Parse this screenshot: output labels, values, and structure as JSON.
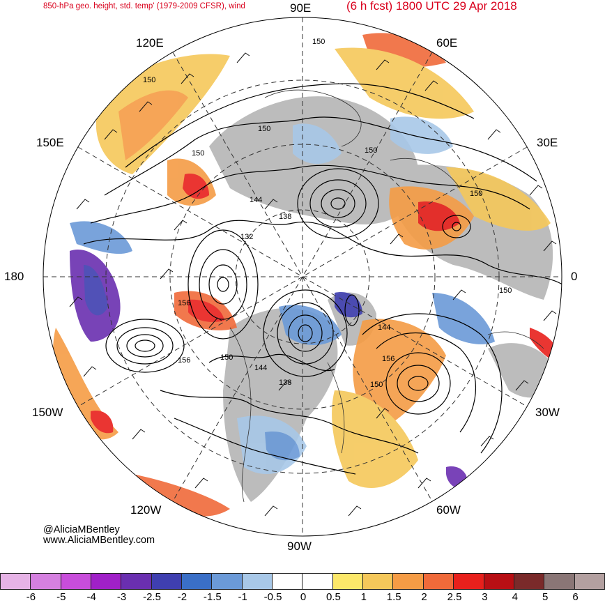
{
  "header": {
    "left_title": "850-hPa geo. height, std. temp' (1979-2009 CFSR), wind",
    "right_title": "(6 h fcst) 1800 UTC 29 Apr 2018"
  },
  "longitude_labels": {
    "lon_90e": "90E",
    "lon_120e": "120E",
    "lon_60e": "60E",
    "lon_150e": "150E",
    "lon_30e": "30E",
    "lon_180": "180",
    "lon_0": "0",
    "lon_150w": "150W",
    "lon_30w": "30W",
    "lon_120w": "120W",
    "lon_60w": "60W",
    "lon_90w": "90W"
  },
  "contour_labels": [
    "150",
    "150",
    "150",
    "150",
    "150",
    "144",
    "138",
    "132",
    "156",
    "156",
    "150",
    "144",
    "138",
    "156",
    "150",
    "144",
    "150",
    "150"
  ],
  "credit": {
    "handle": "@AliciaMBentley",
    "site": "www.AliciaMBentley.com"
  },
  "colorbar": {
    "colors": [
      "#e6b3e6",
      "#d580e0",
      "#c84ddb",
      "#a020c8",
      "#6a2fb0",
      "#3f3fb0",
      "#3a6fc7",
      "#6b9ad8",
      "#a8c8e8",
      "#ffffff",
      "#ffffff",
      "#fce86a",
      "#f5c85a",
      "#f59c45",
      "#f06a3a",
      "#e8201c",
      "#b80f14",
      "#7a2a2a",
      "#8a7676",
      "#b3a0a0"
    ],
    "ticks": [
      "-6",
      "-5",
      "-4",
      "-3",
      "-2.5",
      "-2",
      "-1.5",
      "-1",
      "-0.5",
      "0",
      "0.5",
      "1",
      "1.5",
      "2",
      "2.5",
      "3",
      "4",
      "5",
      "6"
    ]
  }
}
